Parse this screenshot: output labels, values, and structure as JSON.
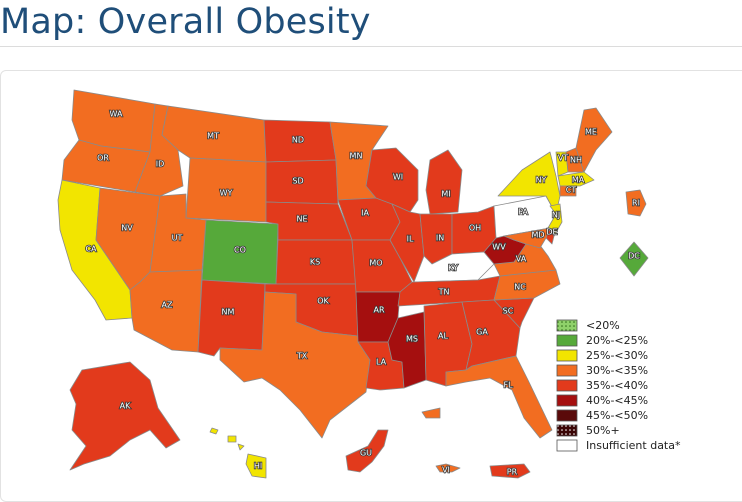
{
  "title": "Map: Overall Obesity",
  "colors": {
    "lt20": "#8fd16a",
    "c20_25": "#56a93a",
    "c25_30": "#f2e500",
    "c30_35": "#f26d21",
    "c35_40": "#e23a1c",
    "c40_45": "#a50f0f",
    "c45_50": "#5a0a0a",
    "c50p": "#3a0505",
    "insufficient": "#ffffff"
  },
  "legend": [
    {
      "label": "<20%",
      "color": "#8fd16a",
      "pattern": "dots"
    },
    {
      "label": "20%-<25%",
      "color": "#56a93a"
    },
    {
      "label": "25%-<30%",
      "color": "#f2e500"
    },
    {
      "label": "30%-<35%",
      "color": "#f26d21"
    },
    {
      "label": "35%-<40%",
      "color": "#e23a1c"
    },
    {
      "label": "40%-<45%",
      "color": "#a50f0f"
    },
    {
      "label": "45%-<50%",
      "color": "#5a0a0a"
    },
    {
      "label": "50%+",
      "color": "#3a0505",
      "pattern": "dots"
    },
    {
      "label": "Insufficient data*",
      "color": "#ffffff"
    }
  ],
  "states": {
    "WA": "30%-<35%",
    "OR": "30%-<35%",
    "CA": "25%-<30%",
    "NV": "30%-<35%",
    "ID": "30%-<35%",
    "MT": "30%-<35%",
    "WY": "30%-<35%",
    "UT": "30%-<35%",
    "AZ": "30%-<35%",
    "CO": "20%-<25%",
    "NM": "35%-<40%",
    "ND": "35%-<40%",
    "SD": "35%-<40%",
    "NE": "35%-<40%",
    "KS": "35%-<40%",
    "OK": "35%-<40%",
    "TX": "30%-<35%",
    "MN": "30%-<35%",
    "IA": "35%-<40%",
    "MO": "35%-<40%",
    "AR": "40%-<45%",
    "LA": "35%-<40%",
    "WI": "35%-<40%",
    "IL": "35%-<40%",
    "MS": "40%-<45%",
    "MI": "35%-<40%",
    "IN": "35%-<40%",
    "OH": "35%-<40%",
    "KY": "Insufficient data*",
    "TN": "35%-<40%",
    "AL": "35%-<40%",
    "GA": "35%-<40%",
    "FL": "30%-<35%",
    "SC": "35%-<40%",
    "NC": "30%-<35%",
    "VA": "30%-<35%",
    "WV": "40%-<45%",
    "PA": "Insufficient data*",
    "NY": "25%-<30%",
    "VT": "25%-<30%",
    "NH": "30%-<35%",
    "ME": "30%-<35%",
    "MA": "25%-<30%",
    "CT": "30%-<35%",
    "RI": "30%-<35%",
    "NJ": "25%-<30%",
    "DE": "35%-<40%",
    "MD": "30%-<35%",
    "DC": "20%-<25%",
    "AK": "35%-<40%",
    "HI": "25%-<30%",
    "GU": "35%-<40%",
    "VI": "30%-<35%",
    "PR": "35%-<40%"
  }
}
